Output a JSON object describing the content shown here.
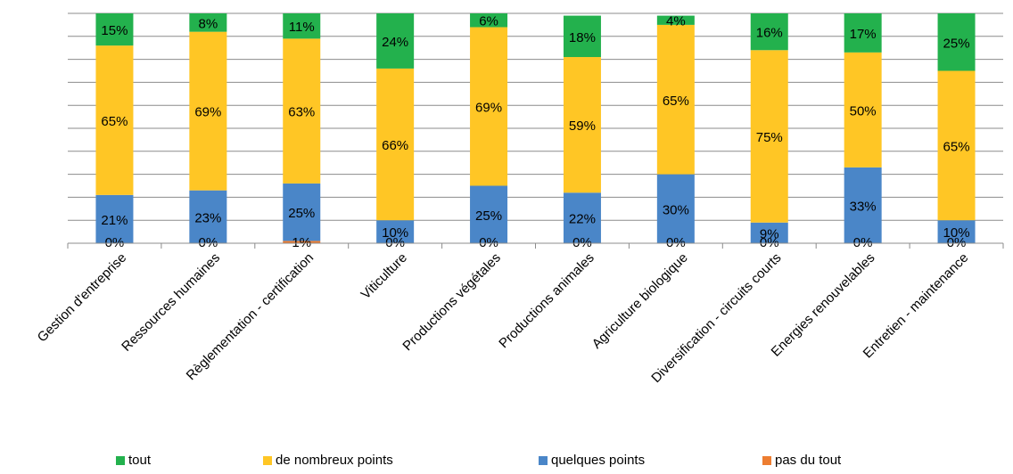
{
  "chart_data": {
    "type": "bar",
    "stacked": true,
    "percent": true,
    "categories": [
      "Gestion d'entreprise",
      "Ressources humaines",
      "Règlementation - certification",
      "Viticulture",
      "Productions végétales",
      "Productions animales",
      "Agriculture biologique",
      "Diversification - circuits courts",
      "Energies renouvelables",
      "Entretien - maintenance"
    ],
    "series": [
      {
        "name": "pas du tout",
        "color": "#ED7D31",
        "values": [
          0,
          0,
          1,
          0,
          0,
          0,
          0,
          0,
          0,
          0
        ],
        "labels": [
          "0%",
          "0%",
          "1%",
          "0%",
          "0%",
          "0%",
          "0%",
          "0%",
          "0%",
          "0%"
        ]
      },
      {
        "name": "quelques points",
        "color": "#4A86C8",
        "values": [
          21,
          23,
          25,
          10,
          25,
          22,
          30,
          9,
          33,
          10
        ],
        "labels": [
          "21%",
          "23%",
          "25%",
          "10%",
          "25%",
          "22%",
          "30%",
          "9%",
          "33%",
          "10%"
        ]
      },
      {
        "name": "de nombreux points",
        "color": "#FFC625",
        "values": [
          65,
          69,
          63,
          66,
          69,
          59,
          65,
          75,
          50,
          65
        ],
        "labels": [
          "65%",
          "69%",
          "63%",
          "66%",
          "69%",
          "59%",
          "65%",
          "75%",
          "50%",
          "65%"
        ]
      },
      {
        "name": "tout",
        "color": "#23B14D",
        "values": [
          15,
          8,
          11,
          24,
          6,
          18,
          4,
          16,
          17,
          25
        ],
        "labels": [
          "15%",
          "8%",
          "11%",
          "24%",
          "6%",
          "18%",
          "4%",
          "16%",
          "17%",
          "25%"
        ]
      }
    ],
    "legend_order": [
      "tout",
      "de nombreux points",
      "quelques points",
      "pas du tout"
    ],
    "legend_position": "bottom",
    "grid": true,
    "ylim": [
      0,
      100
    ]
  }
}
